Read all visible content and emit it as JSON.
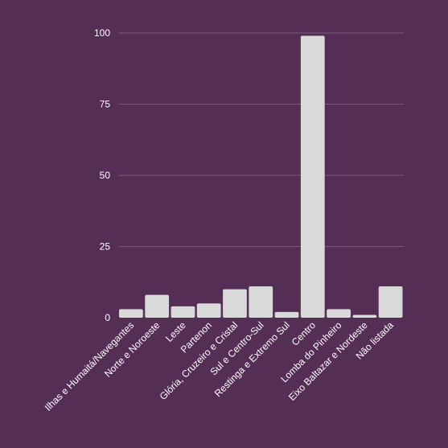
{
  "colors": {
    "background": "#552e55",
    "bar": "#d9d9d9",
    "grid": "#7a5a7a",
    "text": "#ffffff"
  },
  "chart_data": {
    "type": "bar",
    "categories": [
      "Ilhas e Humaitá/Navegantes",
      "Norte e Noroeste",
      "Leste",
      "Partenon",
      "Glória, Cruzeiro e Cristal",
      "Sul e Centro-Sul",
      "Restinga e Extremo Sul",
      "Centro",
      "Lomba do Pinheiro",
      "Eixo Baltazar e Nordeste",
      "Não listada"
    ],
    "values": [
      3,
      8,
      4,
      5,
      10,
      11,
      2,
      99,
      3,
      1,
      11
    ],
    "yticks": [
      0,
      25,
      50,
      75,
      100
    ],
    "ylim": [
      0,
      100
    ],
    "grid": true,
    "title": "",
    "xlabel": "",
    "ylabel": ""
  }
}
